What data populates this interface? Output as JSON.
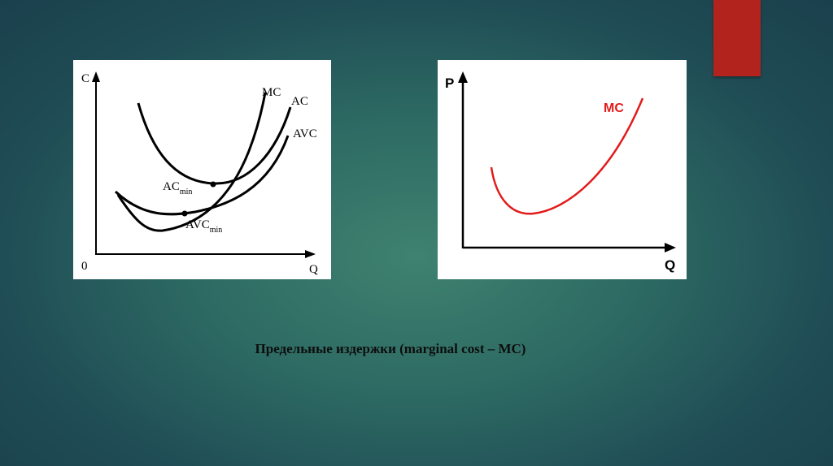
{
  "slide": {
    "accent_color": "#b3231e",
    "caption": "Предельные издержки (marginal cost – MC)"
  },
  "left_diagram": {
    "y_axis_label": "C",
    "x_axis_label": "Q",
    "origin_label": "0",
    "curve_labels": [
      "MC",
      "AC",
      "AVC"
    ],
    "points": [
      {
        "label": "AC",
        "subscript": "min"
      },
      {
        "label": "AVC",
        "subscript": "min"
      }
    ]
  },
  "right_diagram": {
    "y_axis_label": "P",
    "x_axis_label": "Q",
    "curve_label": "MC",
    "curve_color": "#e21b1b"
  }
}
